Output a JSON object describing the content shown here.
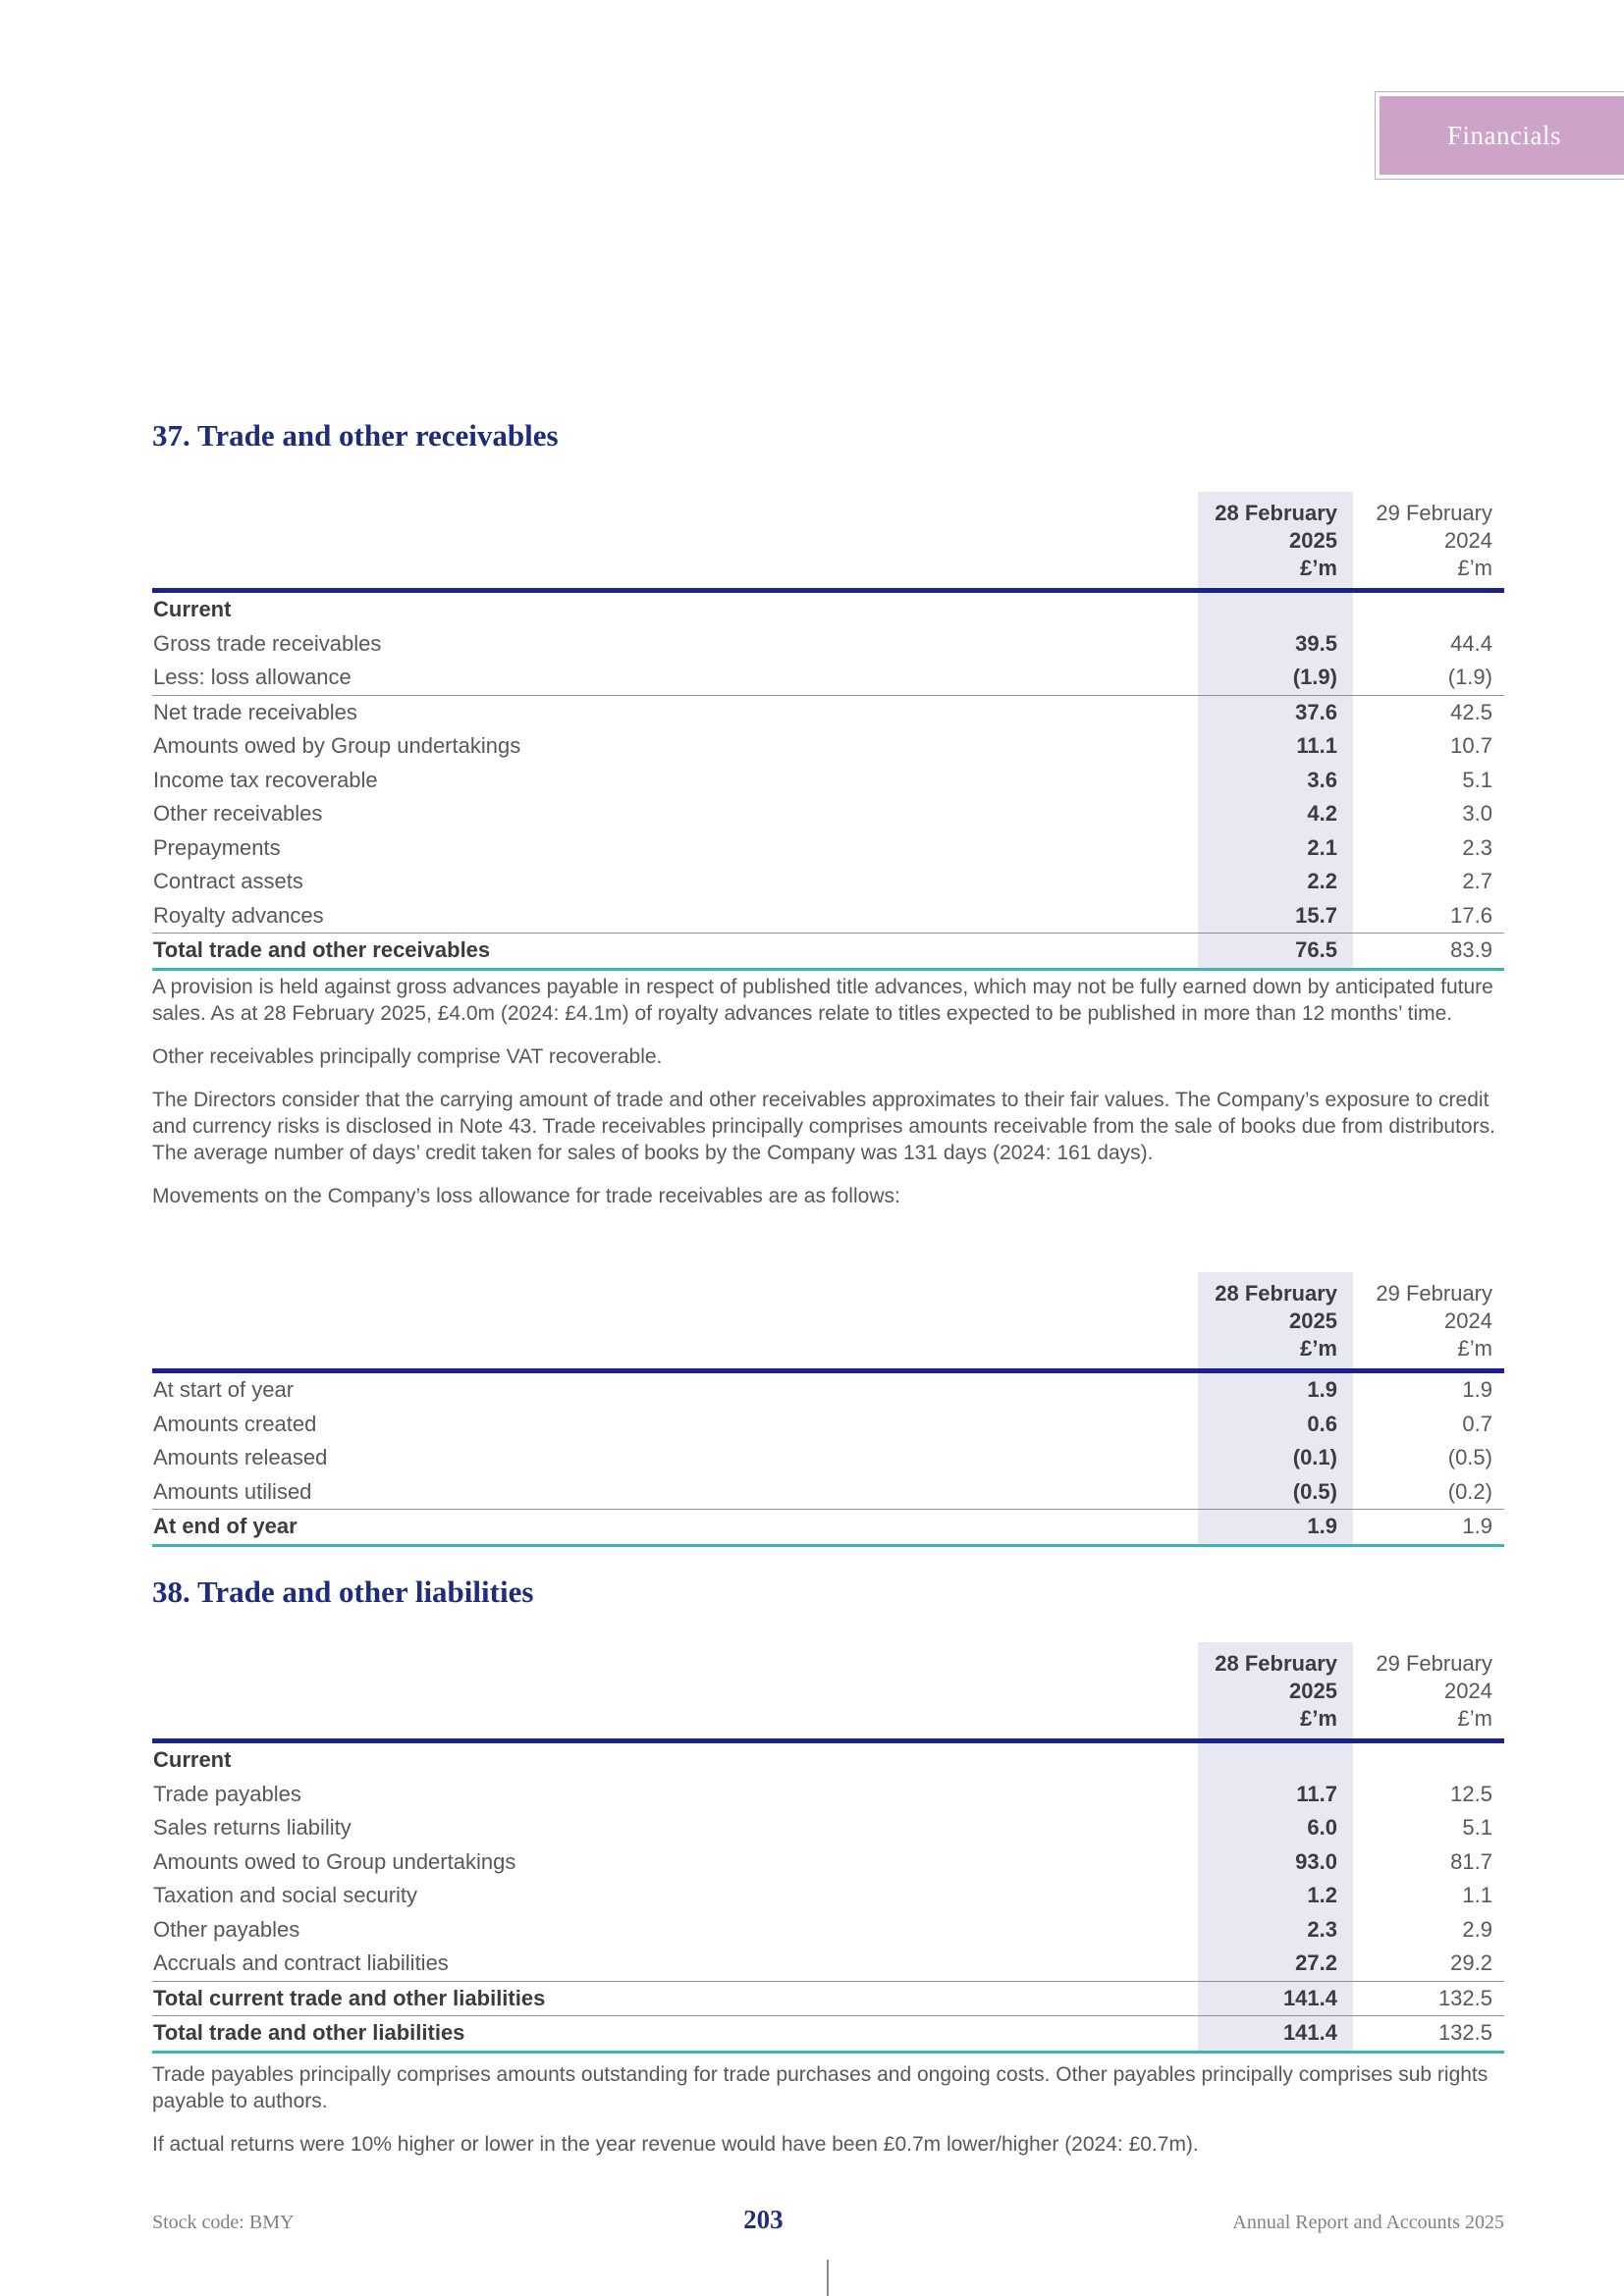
{
  "badge": {
    "label": "Financials"
  },
  "colors": {
    "accent_navy": "#1b2190",
    "title_navy": "#1f2c7c",
    "teal_rule": "#3cb6b1",
    "badge_pink": "#cda4c8",
    "column_shade": "#e8e8f3"
  },
  "section37": {
    "title": "37. Trade and other receivables",
    "paragraphs": [
      "A provision is held against gross advances payable in respect of published title advances, which may not be fully earned down by anticipated future sales. As at 28 February 2025, £4.0m (2024: £4.1m) of royalty advances relate to titles expected to be published in more than 12 months’ time.",
      "Other receivables principally comprise VAT recoverable.",
      "The Directors consider that the carrying amount of trade and other receivables approximates to their fair values. The Company’s exposure to credit and currency risks is disclosed in Note 43. Trade receivables principally comprises amounts receivable from the sale of books due from distributors. The average number of days’ credit taken for sales of books by the Company was 131 days (2024: 161 days).",
      "Movements on the Company’s loss allowance for trade receivables are as follows:"
    ]
  },
  "section38": {
    "title": "38. Trade and other liabilities",
    "paragraphs": [
      "Trade payables principally comprises amounts outstanding for trade purchases and ongoing costs. Other payables principally comprises sub rights payable to authors.",
      "If actual returns were 10% higher or lower in the year revenue would have been £0.7m lower/higher (2024: £0.7m)."
    ]
  },
  "tables": [
    {
      "name": "trade-and-other-receivables",
      "header": {
        "col2025": [
          "28 February",
          "2025",
          "£’m"
        ],
        "col2024": [
          "29 February",
          "2024",
          "£’m"
        ]
      },
      "rows": [
        {
          "label": "Current",
          "v2025": "",
          "v2024": "",
          "bold": true
        },
        {
          "label": "Gross trade receivables",
          "v2025": "39.5",
          "v2024": "44.4"
        },
        {
          "label": "Less: loss allowance",
          "v2025": "(1.9)",
          "v2024": "(1.9)",
          "rule_below": true
        },
        {
          "label": "Net trade receivables",
          "v2025": "37.6",
          "v2024": "42.5"
        },
        {
          "label": "Amounts owed by Group undertakings",
          "v2025": "11.1",
          "v2024": "10.7"
        },
        {
          "label": "Income tax recoverable",
          "v2025": "3.6",
          "v2024": "5.1"
        },
        {
          "label": "Other receivables",
          "v2025": "4.2",
          "v2024": "3.0"
        },
        {
          "label": "Prepayments",
          "v2025": "2.1",
          "v2024": "2.3"
        },
        {
          "label": "Contract assets",
          "v2025": "2.2",
          "v2024": "2.7"
        },
        {
          "label": "Royalty advances",
          "v2025": "15.7",
          "v2024": "17.6",
          "rule_below": true
        },
        {
          "label": "Total trade and other receivables",
          "v2025": "76.5",
          "v2024": "83.9",
          "bold": true
        }
      ]
    },
    {
      "name": "loss-allowance-movements",
      "header": {
        "col2025": [
          "28 February",
          "2025",
          "£’m"
        ],
        "col2024": [
          "29 February",
          "2024",
          "£’m"
        ]
      },
      "rows": [
        {
          "label": "At start of year",
          "v2025": "1.9",
          "v2024": "1.9"
        },
        {
          "label": "Amounts created",
          "v2025": "0.6",
          "v2024": "0.7"
        },
        {
          "label": "Amounts released",
          "v2025": "(0.1)",
          "v2024": "(0.5)"
        },
        {
          "label": "Amounts utilised",
          "v2025": "(0.5)",
          "v2024": "(0.2)",
          "rule_below": true
        },
        {
          "label": "At end of year",
          "v2025": "1.9",
          "v2024": "1.9",
          "bold": true
        }
      ]
    },
    {
      "name": "trade-and-other-liabilities",
      "header": {
        "col2025": [
          "28 February",
          "2025",
          "£’m"
        ],
        "col2024": [
          "29 February",
          "2024",
          "£’m"
        ]
      },
      "rows": [
        {
          "label": "Current",
          "v2025": "",
          "v2024": "",
          "bold": true
        },
        {
          "label": "Trade payables",
          "v2025": "11.7",
          "v2024": "12.5"
        },
        {
          "label": "Sales returns liability",
          "v2025": "6.0",
          "v2024": "5.1"
        },
        {
          "label": "Amounts owed to Group undertakings",
          "v2025": "93.0",
          "v2024": "81.7"
        },
        {
          "label": "Taxation and social security",
          "v2025": "1.2",
          "v2024": "1.1"
        },
        {
          "label": "Other payables",
          "v2025": "2.3",
          "v2024": "2.9"
        },
        {
          "label": "Accruals and contract liabilities",
          "v2025": "27.2",
          "v2024": "29.2",
          "rule_below": true
        },
        {
          "label": "Total current trade and other liabilities",
          "v2025": "141.4",
          "v2024": "132.5",
          "bold": true,
          "rule_below": true
        },
        {
          "label": "Total trade and other liabilities",
          "v2025": "141.4",
          "v2024": "132.5",
          "bold": true
        }
      ]
    }
  ],
  "footer": {
    "left": "Stock code: BMY",
    "page_number": "203",
    "right": "Annual Report and Accounts 2025"
  }
}
